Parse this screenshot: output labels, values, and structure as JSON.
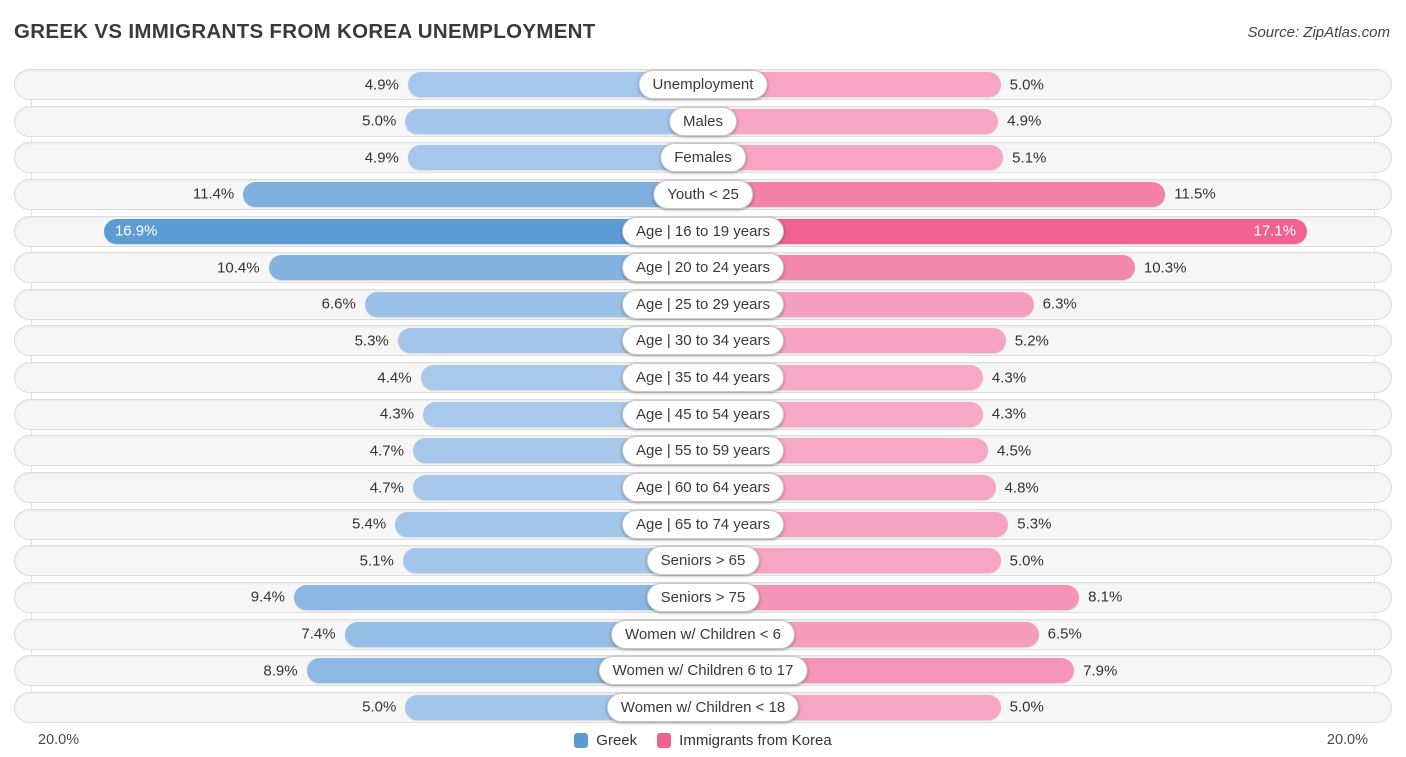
{
  "title": "GREEK VS IMMIGRANTS FROM KOREA UNEMPLOYMENT",
  "source": "Source: ZipAtlas.com",
  "chart_data": {
    "type": "bar",
    "orientation": "bidirectional-horizontal",
    "title": "GREEK VS IMMIGRANTS FROM KOREA UNEMPLOYMENT",
    "categories": [
      "Unemployment",
      "Males",
      "Females",
      "Youth < 25",
      "Age | 16 to 19 years",
      "Age | 20 to 24 years",
      "Age | 25 to 29 years",
      "Age | 30 to 34 years",
      "Age | 35 to 44 years",
      "Age | 45 to 54 years",
      "Age | 55 to 59 years",
      "Age | 60 to 64 years",
      "Age | 65 to 74 years",
      "Seniors > 65",
      "Seniors > 75",
      "Women w/ Children < 6",
      "Women w/ Children 6 to 17",
      "Women w/ Children < 18"
    ],
    "series": [
      {
        "name": "Greek",
        "side": "left",
        "values": [
          4.9,
          5.0,
          4.9,
          11.4,
          16.9,
          10.4,
          6.6,
          5.3,
          4.4,
          4.3,
          4.7,
          4.7,
          5.4,
          5.1,
          9.4,
          7.4,
          8.9,
          5.0
        ]
      },
      {
        "name": "Immigrants from Korea",
        "side": "right",
        "values": [
          5.0,
          4.9,
          5.1,
          11.5,
          17.1,
          10.3,
          6.3,
          5.2,
          4.3,
          4.3,
          4.5,
          4.8,
          5.3,
          5.0,
          8.1,
          6.5,
          7.9,
          5.0
        ]
      }
    ],
    "value_suffix": "%",
    "axis": {
      "max_percent": 20.0,
      "left_axis_label": "20.0%",
      "right_axis_label": "20.0%"
    },
    "legend": [
      "Greek",
      "Immigrants from Korea"
    ],
    "legend_position": "bottom-center",
    "grid": "faint-vertical-edges"
  },
  "colors": {
    "greek_light": "#a9c9ec",
    "greek_dark": "#5b9bd5",
    "korea_light": "#f7a9c5",
    "korea_dark": "#ef6292",
    "legend_greek_swatch": "#5b9bd5",
    "legend_korea_swatch": "#ee6291",
    "track_bg": "#f6f6f6",
    "track_border": "#dddddd",
    "scale_value_min": 4.3,
    "scale_value_max": 17.1
  }
}
